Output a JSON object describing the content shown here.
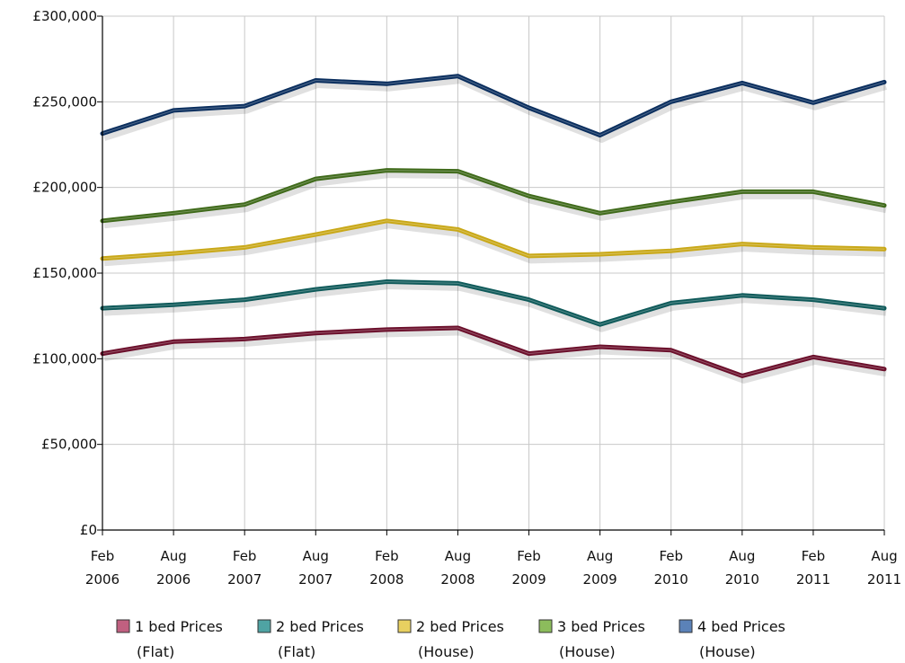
{
  "chart_data": {
    "type": "line",
    "categories": [
      [
        "Feb",
        "2006"
      ],
      [
        "Aug",
        "2006"
      ],
      [
        "Feb",
        "2007"
      ],
      [
        "Aug",
        "2007"
      ],
      [
        "Feb",
        "2008"
      ],
      [
        "Aug",
        "2008"
      ],
      [
        "Feb",
        "2009"
      ],
      [
        "Aug",
        "2009"
      ],
      [
        "Feb",
        "2010"
      ],
      [
        "Aug",
        "2010"
      ],
      [
        "Feb",
        "2011"
      ],
      [
        "Aug",
        "2011"
      ]
    ],
    "y_ticks": [
      "£0",
      "£50,000",
      "£100,000",
      "£150,000",
      "£200,000",
      "£250,000",
      "£300,000"
    ],
    "ylim": [
      0,
      300000
    ],
    "grid": true,
    "legend_position": "bottom",
    "series": [
      {
        "name_lines": [
          "1 bed Prices",
          "(Flat)"
        ],
        "color": "#6b0f2b",
        "legend_color": "#c06080",
        "values": [
          103000,
          110000,
          111500,
          115000,
          117000,
          118000,
          103000,
          107000,
          105000,
          90000,
          101000,
          94000
        ]
      },
      {
        "name_lines": [
          "2 bed Prices",
          "(Flat)"
        ],
        "color": "#0f5a5a",
        "legend_color": "#4fa3a3",
        "values": [
          129500,
          131500,
          134500,
          140500,
          145000,
          144000,
          134500,
          120000,
          132500,
          137000,
          134500,
          129500
        ]
      },
      {
        "name_lines": [
          "2 bed Prices",
          "(House)"
        ],
        "color": "#c9a818",
        "legend_color": "#e8d060",
        "values": [
          158500,
          161500,
          165000,
          172500,
          180500,
          175500,
          160000,
          161000,
          163000,
          167000,
          165000,
          164000
        ]
      },
      {
        "name_lines": [
          "3 bed Prices",
          "(House)"
        ],
        "color": "#3f6a1a",
        "legend_color": "#8cbc5c",
        "values": [
          180500,
          185000,
          190000,
          205000,
          210000,
          209500,
          195000,
          185000,
          191500,
          197500,
          197500,
          189500
        ]
      },
      {
        "name_lines": [
          "4 bed Prices",
          "(House)"
        ],
        "color": "#0a2e5e",
        "legend_color": "#5b82b8",
        "values": [
          231500,
          245000,
          247500,
          262500,
          260500,
          265000,
          246500,
          230500,
          250000,
          261000,
          249500,
          261500
        ]
      }
    ]
  }
}
